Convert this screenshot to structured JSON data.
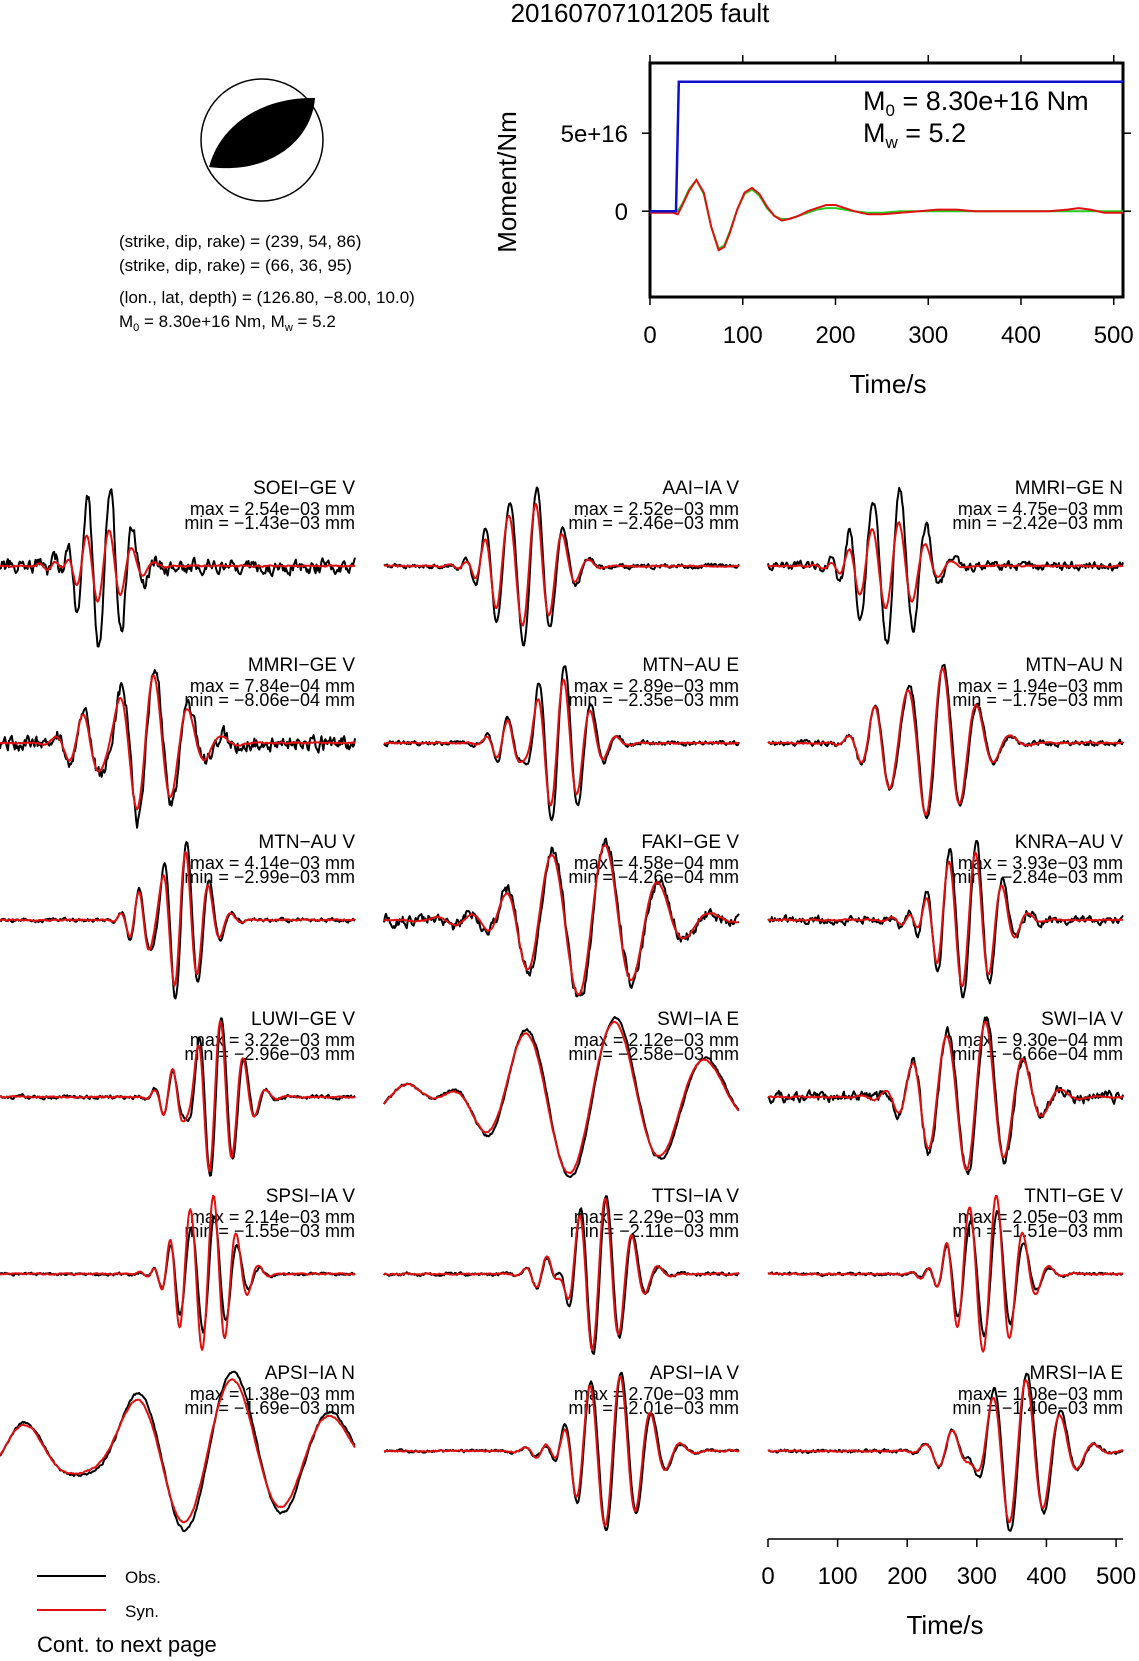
{
  "page": {
    "title": "20160707101205 fault",
    "footer": "Cont. to next page"
  },
  "mechanism": {
    "plane1": "(strike, dip, rake) = (239, 54, 86)",
    "plane2": "(strike, dip, rake) = (66, 36, 95)",
    "location": "(lon., lat, depth) = (126.80, −8.00, 10.0)",
    "moment_main": "M",
    "moment_sub": "0",
    "moment_rest": " = 8.30e+16 Nm, M",
    "mw_sub": "w",
    "mw_rest": " = 5.2"
  },
  "chart_data": [
    {
      "type": "line",
      "name": "moment-rate",
      "xlabel": "Time/s",
      "ylabel": "Moment/Nm",
      "xlim": [
        0,
        510
      ],
      "ylim": [
        -5.5e+16,
        9.5e+16
      ],
      "xticks": [
        "0",
        "100",
        "200",
        "300",
        "400",
        "500"
      ],
      "yticks": [
        {
          "v": 0,
          "label": "0"
        },
        {
          "v": 5e+16,
          "label": "5e+16"
        }
      ],
      "colors": {
        "cumulative": "#1010c8",
        "syn": "#e01010",
        "alt": "#22cc22"
      },
      "annotations": {
        "m0_main": "M",
        "m0_sub": "0",
        "m0_rest": " = 8.30e+16 Nm",
        "mw_main": "M",
        "mw_sub": "w",
        "mw_rest": " = 5.2"
      },
      "series": [
        {
          "role": "cumulative",
          "x": [
            0,
            28,
            31,
            510
          ],
          "y": [
            0,
            0,
            8.3e+16,
            8.3e+16
          ]
        },
        {
          "role": "syn",
          "x": [
            0,
            25,
            30,
            35,
            42,
            50,
            58,
            66,
            74,
            80,
            86,
            94,
            102,
            110,
            118,
            126,
            134,
            142,
            150,
            160,
            170,
            180,
            190,
            200,
            210,
            220,
            235,
            250,
            270,
            290,
            310,
            330,
            350,
            380,
            410,
            430,
            450,
            462,
            475,
            490,
            510
          ],
          "y": [
            -1000000000000000.0,
            -1000000000000000.0,
            -2000000000000000.0,
            4000000000000000.0,
            1.3e+16,
            2e+16,
            1.2e+16,
            -1e+16,
            -2.5e+16,
            -2.3e+16,
            -1.4e+16,
            1000000000000000.0,
            1.2e+16,
            1.5e+16,
            1.1e+16,
            3000000000000000.0,
            -3000000000000000.0,
            -6000000000000000.0,
            -5000000000000000.0,
            -3000000000000000.0,
            0.0,
            2000000000000000.0,
            4000000000000000.0,
            4000000000000000.0,
            2000000000000000.0,
            0.0,
            -2000000000000000.0,
            -2000000000000000.0,
            -1000000000000000.0,
            0.0,
            1000000000000000.0,
            1000000000000000.0,
            0.0,
            0.0,
            0.0,
            0.0,
            1000000000000000.0,
            2000000000000000.0,
            1000000000000000.0,
            -1000000000000000.0,
            -1000000000000000.0
          ]
        },
        {
          "role": "alt",
          "x": [
            0,
            25,
            30,
            35,
            42,
            50,
            58,
            66,
            74,
            80,
            86,
            94,
            102,
            110,
            118,
            126,
            134,
            142,
            150,
            160,
            170,
            180,
            190,
            200,
            210,
            220,
            235,
            250,
            270,
            290,
            310,
            330,
            350,
            380,
            410,
            440,
            470,
            510
          ],
          "y": [
            0.0,
            0.0,
            0.0,
            5000000000000000.0,
            1.4e+16,
            2e+16,
            1.1e+16,
            -1e+16,
            -2.4e+16,
            -2.2e+16,
            -1.3e+16,
            1000000000000000.0,
            1.1e+16,
            1.4e+16,
            1e+16,
            2000000000000000.0,
            -3000000000000000.0,
            -5000000000000000.0,
            -5000000000000000.0,
            -3000000000000000.0,
            -1000000000000000.0,
            1000000000000000.0,
            2000000000000000.0,
            2000000000000000.0,
            1000000000000000.0,
            0.0,
            -1000000000000000.0,
            -1000000000000000.0,
            0.0,
            0.0,
            0.0,
            0.0,
            0.0,
            0.0,
            0.0,
            0.0,
            0.0,
            0.0
          ]
        }
      ]
    },
    {
      "type": "line",
      "name": "waveform-comparison",
      "xlabel": "Time/s",
      "xlim": [
        0,
        510
      ],
      "xticks": [
        "0",
        "100",
        "200",
        "300",
        "400",
        "500"
      ],
      "legend": {
        "obs": "Obs.",
        "syn": "Syn."
      },
      "colors": {
        "obs": "#000000",
        "syn": "#e01010"
      },
      "traces": [
        {
          "label": "SOEI−GE V",
          "max": "max = 2.54e−03 mm",
          "min": "min = −1.43e−03 mm",
          "seed": 3,
          "center": 150,
          "spread": 60,
          "obsPeak": 1.0,
          "synPeak": 0.45,
          "noise": 0.16
        },
        {
          "label": "AAI−IA V",
          "max": "max = 2.52e−03 mm",
          "min": "min = −2.46e−03 mm",
          "seed": 7,
          "center": 210,
          "spread": 70,
          "obsPeak": 1.0,
          "synPeak": 0.78,
          "noise": 0.05
        },
        {
          "label": "MMRI−GE N",
          "max": "max = 4.75e−03 mm",
          "min": "min = −2.42e−03 mm",
          "seed": 11,
          "center": 180,
          "spread": 70,
          "obsPeak": 1.0,
          "synPeak": 0.55,
          "noise": 0.1
        },
        {
          "label": "MMRI−GE V",
          "max": "max = 7.84e−04 mm",
          "min": "min = −8.06e−04 mm",
          "seed": 13,
          "center": 210,
          "spread": 90,
          "obsPeak": 1.0,
          "synPeak": 0.85,
          "noise": 0.17
        },
        {
          "label": "MTN−AU E",
          "max": "max = 2.89e−03 mm",
          "min": "min = −2.35e−03 mm",
          "seed": 17,
          "center": 250,
          "spread": 70,
          "obsPeak": 1.0,
          "synPeak": 0.8,
          "noise": 0.05
        },
        {
          "label": "MTN−AU N",
          "max": "max = 1.94e−03 mm",
          "min": "min = −1.75e−03 mm",
          "seed": 19,
          "center": 240,
          "spread": 90,
          "obsPeak": 1.0,
          "synPeak": 0.95,
          "noise": 0.06
        },
        {
          "label": "MTN−AU V",
          "max": "max = 4.14e−03 mm",
          "min": "min = −2.99e−03 mm",
          "seed": 23,
          "center": 260,
          "spread": 60,
          "obsPeak": 1.0,
          "synPeak": 0.85,
          "noise": 0.04
        },
        {
          "label": "FAKI−GE V",
          "max": "max = 4.58e−04 mm",
          "min": "min = −4.26e−04 mm",
          "seed": 29,
          "center": 300,
          "spread": 140,
          "obsPeak": 1.0,
          "synPeak": 0.95,
          "noise": 0.14
        },
        {
          "label": "KNRA−AU V",
          "max": "max = 3.93e−03 mm",
          "min": "min = −2.84e−03 mm",
          "seed": 31,
          "center": 290,
          "spread": 70,
          "obsPeak": 1.0,
          "synPeak": 0.85,
          "noise": 0.09
        },
        {
          "label": "LUWI−GE V",
          "max": "max = 3.22e−03 mm",
          "min": "min = −2.96e−03 mm",
          "seed": 37,
          "center": 310,
          "spread": 60,
          "obsPeak": 1.0,
          "synPeak": 0.95,
          "noise": 0.04
        },
        {
          "label": "SWI−IA E",
          "max": "max = 2.12e−03 mm",
          "min": "min = −2.58e−03 mm",
          "seed": 41,
          "center": 300,
          "spread": 240,
          "obsPeak": 1.0,
          "synPeak": 0.95,
          "noise": 0.03
        },
        {
          "label": "SWI−IA V",
          "max": "max = 9.30e−04 mm",
          "min": "min = −6.66e−04 mm",
          "seed": 43,
          "center": 300,
          "spread": 100,
          "obsPeak": 1.0,
          "synPeak": 0.95,
          "noise": 0.12
        },
        {
          "label": "SPSI−IA V",
          "max": "max = 2.14e−03 mm",
          "min": "min = −1.55e−03 mm",
          "seed": 47,
          "center": 300,
          "spread": 60,
          "obsPeak": 0.75,
          "synPeak": 1.0,
          "noise": 0.03
        },
        {
          "label": "TTSI−IA V",
          "max": "max = 2.29e−03 mm",
          "min": "min = −2.11e−03 mm",
          "seed": 53,
          "center": 310,
          "spread": 70,
          "obsPeak": 1.0,
          "synPeak": 0.95,
          "noise": 0.04
        },
        {
          "label": "TNTI−GE V",
          "max": "max = 2.05e−03 mm",
          "min": "min = −1.51e−03 mm",
          "seed": 59,
          "center": 320,
          "spread": 70,
          "obsPeak": 0.8,
          "synPeak": 1.0,
          "noise": 0.03
        },
        {
          "label": "APSI−IA N",
          "max": "max = 1.38e−03 mm",
          "min": "min = −1.69e−03 mm",
          "seed": 61,
          "center": 300,
          "spread": 260,
          "obsPeak": 1.0,
          "synPeak": 0.9,
          "noise": 0.03
        },
        {
          "label": "APSI−IA V",
          "max": "max = 2.70e−03 mm",
          "min": "min = −2.01e−03 mm",
          "seed": 67,
          "center": 330,
          "spread": 80,
          "obsPeak": 1.0,
          "synPeak": 0.95,
          "noise": 0.03
        },
        {
          "label": "MRSI−IA E",
          "max": "max = 1.08e−03 mm",
          "min": "min = −1.40e−03 mm",
          "seed": 71,
          "center": 360,
          "spread": 90,
          "obsPeak": 1.0,
          "synPeak": 0.9,
          "noise": 0.04
        }
      ]
    }
  ]
}
